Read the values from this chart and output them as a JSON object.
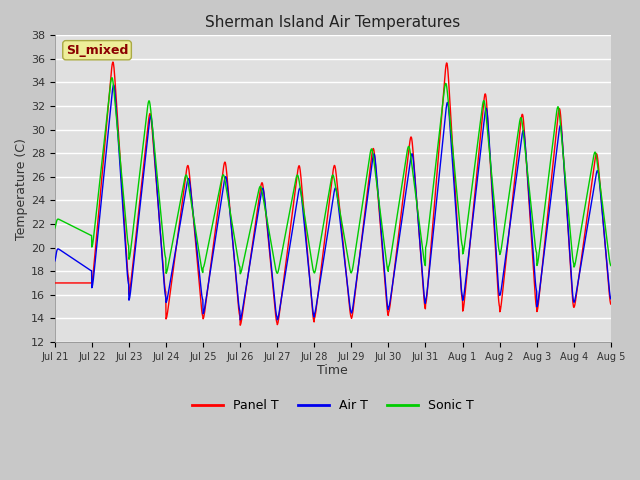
{
  "title": "Sherman Island Air Temperatures",
  "xlabel": "Time",
  "ylabel": "Temperature (C)",
  "ylim": [
    12,
    38
  ],
  "annotation_text": "SI_mixed",
  "annotation_color": "#8B0000",
  "annotation_bg": "#EEEE99",
  "bg_color": "#C8C8C8",
  "plot_bg": "#E0E0E0",
  "grid_color": "#FFFFFF",
  "legend_labels": [
    "Panel T",
    "Air T",
    "Sonic T"
  ],
  "legend_colors": [
    "#FF0000",
    "#0000EE",
    "#00CC00"
  ],
  "tick_labels": [
    "Jul 21",
    "Jul 22",
    "Jul 23",
    "Jul 24",
    "Jul 25",
    "Jul 26",
    "Jul 27",
    "Jul 28",
    "Jul 29",
    "Jul 30",
    "Jul 31",
    "Aug 1",
    "Aug 2",
    "Aug 3",
    "Aug 4",
    "Aug 5"
  ],
  "panel_data": {
    "day_peaks": [
      17.0,
      36.5,
      32.0,
      27.5,
      27.8,
      26.0,
      27.5,
      27.5,
      29.0,
      30.0,
      36.5,
      33.8,
      32.0,
      32.5,
      28.5
    ],
    "day_troughs": [
      17.0,
      16.5,
      15.5,
      13.5,
      13.5,
      13.0,
      13.0,
      13.5,
      13.5,
      14.0,
      14.5,
      14.0,
      14.0,
      14.0,
      14.5
    ],
    "peak_pos": [
      0.05,
      0.58,
      0.58,
      0.6,
      0.6,
      0.6,
      0.6,
      0.55,
      0.6,
      0.62,
      0.58,
      0.62,
      0.62,
      0.62,
      0.62
    ]
  },
  "air_data": {
    "day_peaks": [
      20.0,
      34.5,
      31.8,
      26.3,
      26.5,
      25.5,
      25.5,
      25.5,
      28.5,
      28.5,
      33.0,
      32.5,
      30.5,
      31.0,
      27.0
    ],
    "day_troughs": [
      18.0,
      16.0,
      15.0,
      15.0,
      14.0,
      13.5,
      13.5,
      14.0,
      14.0,
      14.5,
      15.0,
      15.0,
      15.5,
      14.5,
      15.0
    ],
    "peak_pos": [
      0.05,
      0.6,
      0.6,
      0.62,
      0.62,
      0.62,
      0.62,
      0.58,
      0.62,
      0.65,
      0.6,
      0.65,
      0.65,
      0.65,
      0.65
    ]
  },
  "sonic_data": {
    "day_peaks": [
      22.5,
      35.0,
      33.0,
      26.5,
      26.5,
      25.5,
      26.5,
      26.5,
      28.8,
      29.0,
      34.5,
      33.0,
      31.5,
      32.5,
      28.5
    ],
    "day_troughs": [
      21.0,
      19.5,
      18.5,
      17.5,
      18.0,
      17.5,
      17.5,
      17.5,
      17.5,
      18.0,
      19.5,
      19.0,
      19.0,
      18.0,
      18.0
    ],
    "peak_pos": [
      0.05,
      0.55,
      0.55,
      0.55,
      0.55,
      0.55,
      0.55,
      0.5,
      0.55,
      0.55,
      0.55,
      0.58,
      0.58,
      0.58,
      0.58
    ]
  },
  "pts_per_day": 144,
  "num_days": 15
}
